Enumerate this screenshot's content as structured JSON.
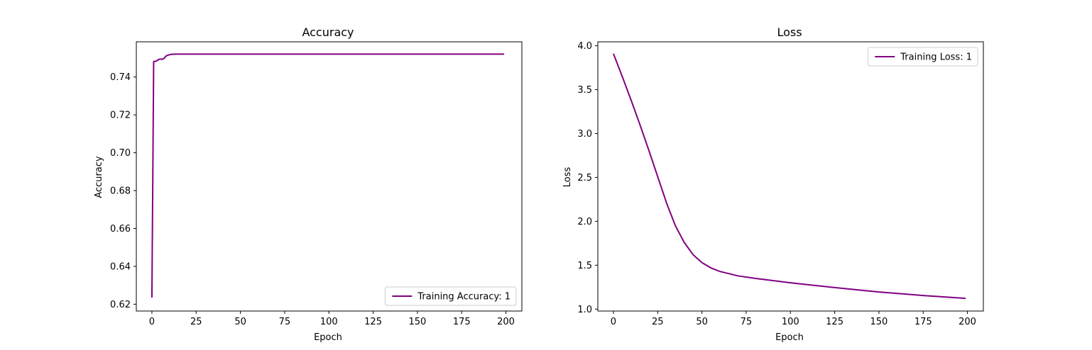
{
  "figure": {
    "background": "#ffffff"
  },
  "chart_data": [
    {
      "type": "line",
      "title": "Accuracy",
      "xlabel": "Epoch",
      "ylabel": "Accuracy",
      "xlim": [
        -8.8,
        209
      ],
      "ylim": [
        0.6164,
        0.7586
      ],
      "xticks": [
        0,
        25,
        50,
        75,
        100,
        125,
        150,
        175,
        200
      ],
      "yticks": [
        0.62,
        0.64,
        0.66,
        0.68,
        0.7,
        0.72,
        0.74
      ],
      "ytick_labels": [
        "0.62",
        "0.64",
        "0.66",
        "0.68",
        "0.70",
        "0.72",
        "0.74"
      ],
      "legend_position": "lower-right",
      "grid": false,
      "series": [
        {
          "name": "Training Accuracy: 1",
          "color": "#800080",
          "x": [
            0,
            1,
            2,
            3,
            4,
            5,
            6,
            7,
            8,
            9,
            10,
            11,
            12,
            13,
            14,
            15,
            17,
            20,
            25,
            199
          ],
          "y": [
            0.6235,
            0.7482,
            0.7483,
            0.7487,
            0.7494,
            0.7495,
            0.7494,
            0.7499,
            0.7511,
            0.7515,
            0.7518,
            0.752,
            0.752,
            0.7521,
            0.7521,
            0.7521,
            0.7521,
            0.7521,
            0.7521,
            0.7521
          ]
        }
      ]
    },
    {
      "type": "line",
      "title": "Loss",
      "xlabel": "Epoch",
      "ylabel": "Loss",
      "xlim": [
        -8.8,
        209
      ],
      "ylim": [
        0.978,
        4.045
      ],
      "xticks": [
        0,
        25,
        50,
        75,
        100,
        125,
        150,
        175,
        200
      ],
      "yticks": [
        1.0,
        1.5,
        2.0,
        2.5,
        3.0,
        3.5,
        4.0
      ],
      "ytick_labels": [
        "1.0",
        "1.5",
        "2.0",
        "2.5",
        "3.0",
        "3.5",
        "4.0"
      ],
      "legend_position": "upper-right",
      "grid": false,
      "series": [
        {
          "name": "Training Loss: 1",
          "color": "#800080",
          "x": [
            0,
            5,
            10,
            15,
            20,
            25,
            30,
            35,
            40,
            45,
            50,
            55,
            60,
            70,
            80,
            100,
            125,
            150,
            175,
            199
          ],
          "y": [
            3.91,
            3.65,
            3.38,
            3.1,
            2.81,
            2.51,
            2.21,
            1.95,
            1.76,
            1.62,
            1.53,
            1.47,
            1.43,
            1.38,
            1.35,
            1.3,
            1.245,
            1.195,
            1.155,
            1.122
          ]
        }
      ]
    }
  ]
}
